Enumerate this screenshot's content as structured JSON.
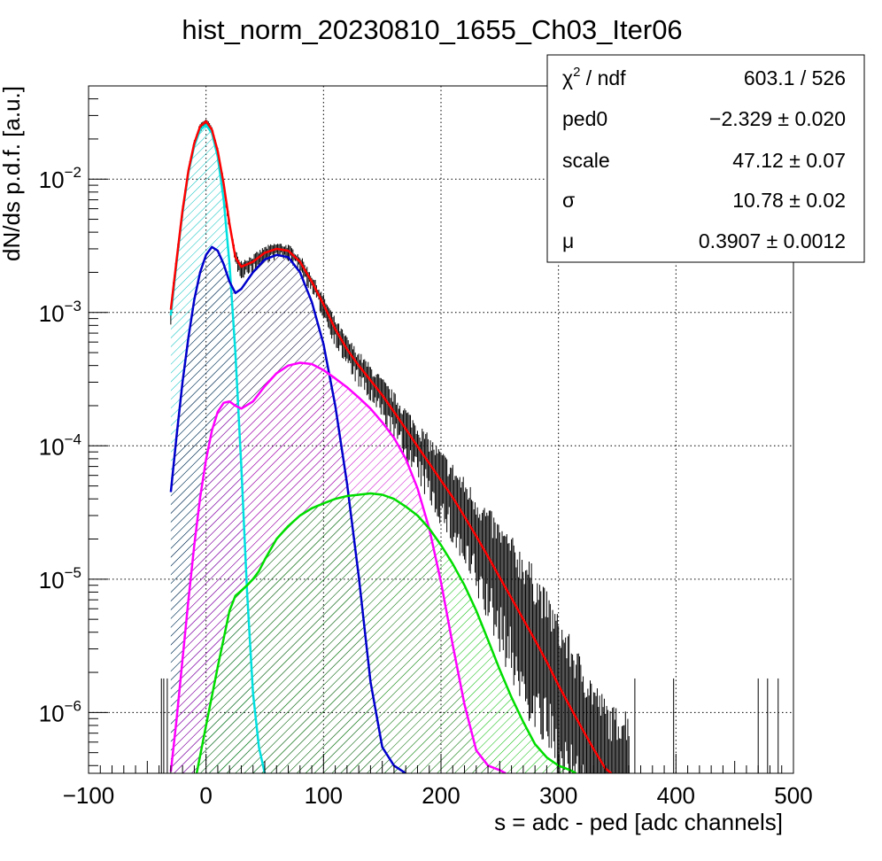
{
  "chart_data": {
    "type": "line",
    "title": "hist_norm_20230810_1655_Ch03_Iter06",
    "xlabel": "s = adc - ped [adc channels]",
    "ylabel": "dN/ds p.d.f. [a.u.]",
    "xlim": [
      -100,
      500
    ],
    "ylim": [
      3.5e-07,
      0.05
    ],
    "yscale": "log",
    "grid": true,
    "x_ticks": [
      "−100",
      "0",
      "100",
      "200",
      "300",
      "400",
      "500"
    ],
    "x_tick_values": [
      -100,
      0,
      100,
      200,
      300,
      400,
      500
    ],
    "y_ticks": [
      {
        "value": 1e-06,
        "base": "10",
        "exp": "−6"
      },
      {
        "value": 1e-05,
        "base": "10",
        "exp": "−5"
      },
      {
        "value": 0.0001,
        "base": "10",
        "exp": "−4"
      },
      {
        "value": 0.001,
        "base": "10",
        "exp": "−3"
      },
      {
        "value": 0.01,
        "base": "10",
        "exp": "−2"
      }
    ],
    "series": [
      {
        "color": "#ff0000",
        "fill": null,
        "x": [
          -30,
          -25,
          -20,
          -15,
          -10,
          -5,
          0,
          5,
          10,
          15,
          20,
          25,
          30,
          40,
          50,
          60,
          70,
          80,
          90,
          100,
          110,
          120,
          130,
          140,
          150,
          160,
          170,
          180,
          190,
          200,
          210,
          220,
          230,
          240,
          250,
          260,
          270,
          280,
          290,
          300,
          310,
          320,
          330,
          340,
          345
        ],
        "y": [
          0.00105,
          0.0025,
          0.0058,
          0.0116,
          0.0186,
          0.0249,
          0.0271,
          0.0235,
          0.0162,
          0.0092,
          0.0046,
          0.0026,
          0.0022,
          0.0024,
          0.0028,
          0.003,
          0.0029,
          0.0024,
          0.0017,
          0.00115,
          0.00075,
          0.00053,
          0.0004,
          0.00031,
          0.00024,
          0.00018,
          0.000134,
          9.9e-05,
          7.4e-05,
          5.5e-05,
          4.1e-05,
          2.95e-05,
          2.1e-05,
          1.48e-05,
          1.03e-05,
          7.2e-06,
          5e-06,
          3.5e-06,
          2.4e-06,
          1.6e-06,
          1.1e-06,
          7.6e-07,
          5.3e-07,
          3.8e-07,
          3.3e-07
        ]
      },
      {
        "color": "#00e0e0",
        "fill": "#00c0c0",
        "x": [
          -30,
          -25,
          -20,
          -15,
          -10,
          -5,
          0,
          5,
          10,
          15,
          20,
          25,
          30,
          35,
          40,
          45,
          50
        ],
        "y": [
          0.00095,
          0.0024,
          0.0056,
          0.0112,
          0.0178,
          0.0234,
          0.0255,
          0.0222,
          0.0147,
          0.007,
          0.0023,
          0.0005,
          7e-05,
          7.8e-06,
          1.4e-06,
          5.5e-07,
          3.5e-07
        ]
      },
      {
        "color": "#0000cc",
        "fill": "#000033",
        "x": [
          -30,
          -25,
          -20,
          -15,
          -10,
          -5,
          0,
          5,
          10,
          15,
          20,
          25,
          30,
          40,
          50,
          60,
          70,
          80,
          90,
          100,
          110,
          120,
          130,
          140,
          150,
          160,
          170
        ],
        "y": [
          4.5e-05,
          0.00012,
          0.0003,
          0.00065,
          0.00125,
          0.002,
          0.0027,
          0.0031,
          0.0029,
          0.0023,
          0.0017,
          0.0014,
          0.0015,
          0.002,
          0.0025,
          0.0027,
          0.0026,
          0.002,
          0.0012,
          0.00058,
          0.0002,
          5.2e-05,
          1.05e-05,
          1.7e-06,
          5.5e-07,
          4e-07,
          3.5e-07
        ]
      },
      {
        "color": "#ff00ff",
        "fill": "#cc00cc",
        "x": [
          -30,
          -25,
          -20,
          -15,
          -10,
          -5,
          0,
          5,
          10,
          15,
          20,
          25,
          30,
          40,
          50,
          60,
          70,
          80,
          90,
          100,
          110,
          120,
          130,
          140,
          150,
          160,
          170,
          180,
          190,
          200,
          210,
          220,
          230,
          240,
          250,
          255
        ],
        "y": [
          3.6e-07,
          9e-07,
          2.5e-06,
          7e-06,
          1.8e-05,
          4.1e-05,
          7.9e-05,
          0.00013,
          0.00018,
          0.00021,
          0.000215,
          0.0002,
          0.00019,
          0.000215,
          0.00028,
          0.00035,
          0.0004,
          0.00042,
          0.00041,
          0.00037,
          0.00032,
          0.000275,
          0.00023,
          0.00019,
          0.00015,
          0.000115,
          8e-05,
          4.8e-05,
          2.4e-05,
          9.5e-06,
          3.2e-06,
          1.15e-06,
          5.2e-07,
          4e-07,
          3.7e-07,
          3.5e-07
        ]
      },
      {
        "color": "#00dd00",
        "fill": "#00bb00",
        "x": [
          -8,
          0,
          10,
          20,
          25,
          30,
          35,
          40,
          45,
          50,
          60,
          70,
          80,
          90,
          100,
          110,
          120,
          130,
          140,
          150,
          160,
          170,
          180,
          190,
          200,
          210,
          220,
          230,
          240,
          250,
          260,
          270,
          280,
          290,
          300,
          310,
          315
        ],
        "y": [
          3.5e-07,
          8e-07,
          2.2e-06,
          5.8e-06,
          7.5e-06,
          8.2e-06,
          9e-06,
          1e-05,
          1.15e-05,
          1.4e-05,
          2e-05,
          2.5e-05,
          3e-05,
          3.4e-05,
          3.7e-05,
          4e-05,
          4.2e-05,
          4.3e-05,
          4.4e-05,
          4.3e-05,
          4e-05,
          3.5e-05,
          3e-05,
          2.4e-05,
          1.8e-05,
          1.3e-05,
          9e-06,
          5.8e-06,
          3.5e-06,
          2.1e-06,
          1.3e-06,
          8.5e-07,
          5.8e-07,
          4.6e-07,
          4e-07,
          3.7e-07,
          3.5e-07
        ]
      }
    ]
  },
  "stats_box": {
    "rows": [
      {
        "label": "χ",
        "label_sup": "2",
        "label_rest": " / ndf",
        "value": "603.1 / 526"
      },
      {
        "label": "ped0",
        "value": "−2.329 ± 0.020"
      },
      {
        "label": "scale",
        "value": "47.12 ± 0.07"
      },
      {
        "label": "σ",
        "value": "10.78 ± 0.02"
      },
      {
        "label": "μ",
        "value": "0.3907 ± 0.0012"
      }
    ]
  }
}
